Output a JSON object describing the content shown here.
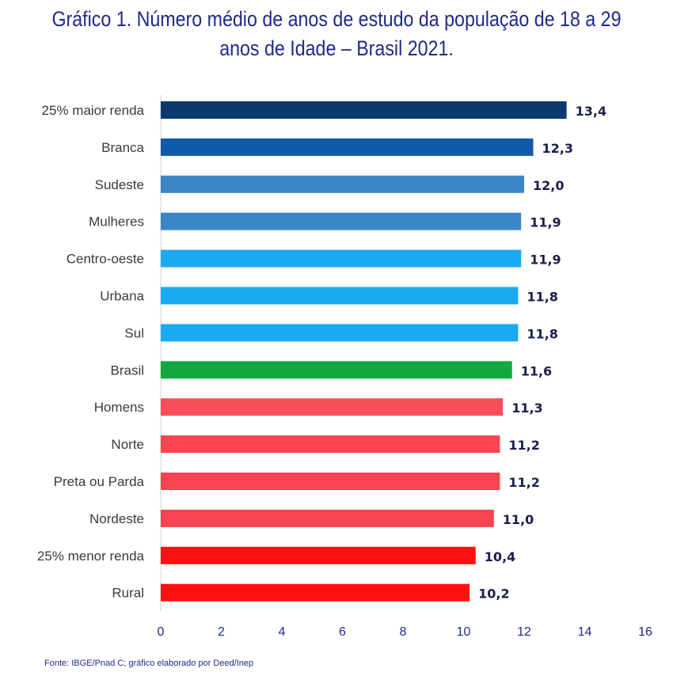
{
  "title_line1": "Gráfico 1. Número médio de anos de estudo da população de 18 a 29",
  "title_line2": "anos de Idade – Brasil 2021.",
  "source": "Fonte: IBGE/Pnad C; gráfico elaborado por Deed/Inep",
  "chart_data": {
    "type": "bar",
    "orientation": "horizontal",
    "title": "Gráfico 1. Número médio de anos de estudo da população de 18 a 29 anos de Idade – Brasil 2021.",
    "categories": [
      "25% maior renda",
      "Branca",
      "Sudeste",
      "Mulheres",
      "Centro-oeste",
      "Urbana",
      "Sul",
      "Brasil",
      "Homens",
      "Norte",
      "Preta ou Parda",
      "Nordeste",
      "25% menor renda",
      "Rural"
    ],
    "values": [
      13.4,
      12.3,
      12.0,
      11.9,
      11.9,
      11.8,
      11.8,
      11.6,
      11.3,
      11.2,
      11.2,
      11.0,
      10.4,
      10.2
    ],
    "value_labels": [
      "13,4",
      "12,3",
      "12,0",
      "11,9",
      "11,9",
      "11,8",
      "11,8",
      "11,6",
      "11,3",
      "11,2",
      "11,2",
      "11,0",
      "10,4",
      "10,2"
    ],
    "colors": [
      "#0d3a6e",
      "#0f5aa8",
      "#3c86c8",
      "#3c86c8",
      "#1aaaf0",
      "#1aaaf0",
      "#1aaaf0",
      "#12a83c",
      "#f74e5a",
      "#f74450",
      "#f74450",
      "#f74450",
      "#ff1010",
      "#ff1010"
    ],
    "xticks": [
      "0",
      "2",
      "4",
      "6",
      "8",
      "10",
      "12",
      "14",
      "16"
    ],
    "xlim": [
      0,
      16
    ],
    "grid": false,
    "legend": "none"
  }
}
